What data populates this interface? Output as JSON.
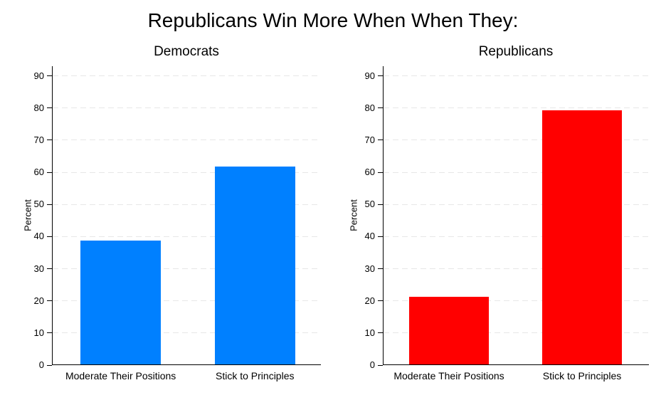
{
  "figure": {
    "title": "Republicans Win More When When They:"
  },
  "chart_data": [
    {
      "type": "bar",
      "title": "Democrats",
      "ylabel": "Percent",
      "categories": [
        "Moderate Their Positions",
        "Stick to Principles"
      ],
      "values": [
        38.5,
        61.5
      ],
      "bar_color": "#0080ff",
      "yticks": [
        0,
        10,
        20,
        30,
        40,
        50,
        60,
        70,
        80,
        90
      ],
      "ylim": [
        0,
        93
      ],
      "grid": "horizontal-dashed",
      "legend": "none"
    },
    {
      "type": "bar",
      "title": "Republicans",
      "ylabel": "Percent",
      "categories": [
        "Moderate Their Positions",
        "Stick to Principles"
      ],
      "values": [
        21,
        79
      ],
      "bar_color": "#ff0000",
      "yticks": [
        0,
        10,
        20,
        30,
        40,
        50,
        60,
        70,
        80,
        90
      ],
      "ylim": [
        0,
        93
      ],
      "grid": "horizontal-dashed",
      "legend": "none"
    }
  ]
}
